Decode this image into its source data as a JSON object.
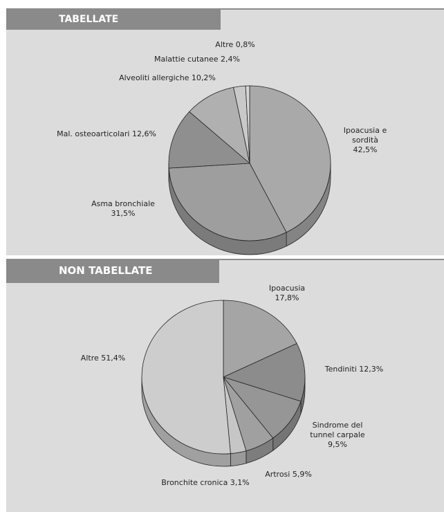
{
  "chart_data": [
    {
      "type": "pie",
      "title": "TABELLATE",
      "slices": [
        {
          "label": "Ipoacusia e sordità",
          "value_text": "42,5%",
          "value": 42.5,
          "color": "#a9a9a9"
        },
        {
          "label": "Asma bronchiale",
          "value_text": "31,5%",
          "value": 31.5,
          "color": "#9e9e9e"
        },
        {
          "label": "Mal. osteoarticolari",
          "value_text": "12,6%",
          "value": 12.6,
          "color": "#8f8f8f"
        },
        {
          "label": "Alveoliti allergiche",
          "value_text": "10,2%",
          "value": 10.2,
          "color": "#b0b0b0"
        },
        {
          "label": "Malattie cutanee",
          "value_text": "2,4%",
          "value": 2.4,
          "color": "#c9c9c9"
        },
        {
          "label": "Altre",
          "value_text": "0,8%",
          "value": 0.8,
          "color": "#d6d6d6"
        }
      ]
    },
    {
      "type": "pie",
      "title": "NON TABELLATE",
      "slices": [
        {
          "label": "Ipoacusia",
          "value_text": "17,8%",
          "value": 17.8,
          "color": "#a5a5a5"
        },
        {
          "label": "Tendiniti",
          "value_text": "12,3%",
          "value": 12.3,
          "color": "#8c8c8c"
        },
        {
          "label": "Sindrome del tunnel carpale",
          "value_text": "9,5%",
          "value": 9.5,
          "color": "#969696"
        },
        {
          "label": "Artrosi",
          "value_text": "5,9%",
          "value": 5.9,
          "color": "#a0a0a0"
        },
        {
          "label": "Bronchite cronica",
          "value_text": "3,1%",
          "value": 3.1,
          "color": "#c6c6c6"
        },
        {
          "label": "Altre",
          "value_text": "51,4%",
          "value": 51.4,
          "color": "#cdcdcd"
        }
      ]
    }
  ]
}
